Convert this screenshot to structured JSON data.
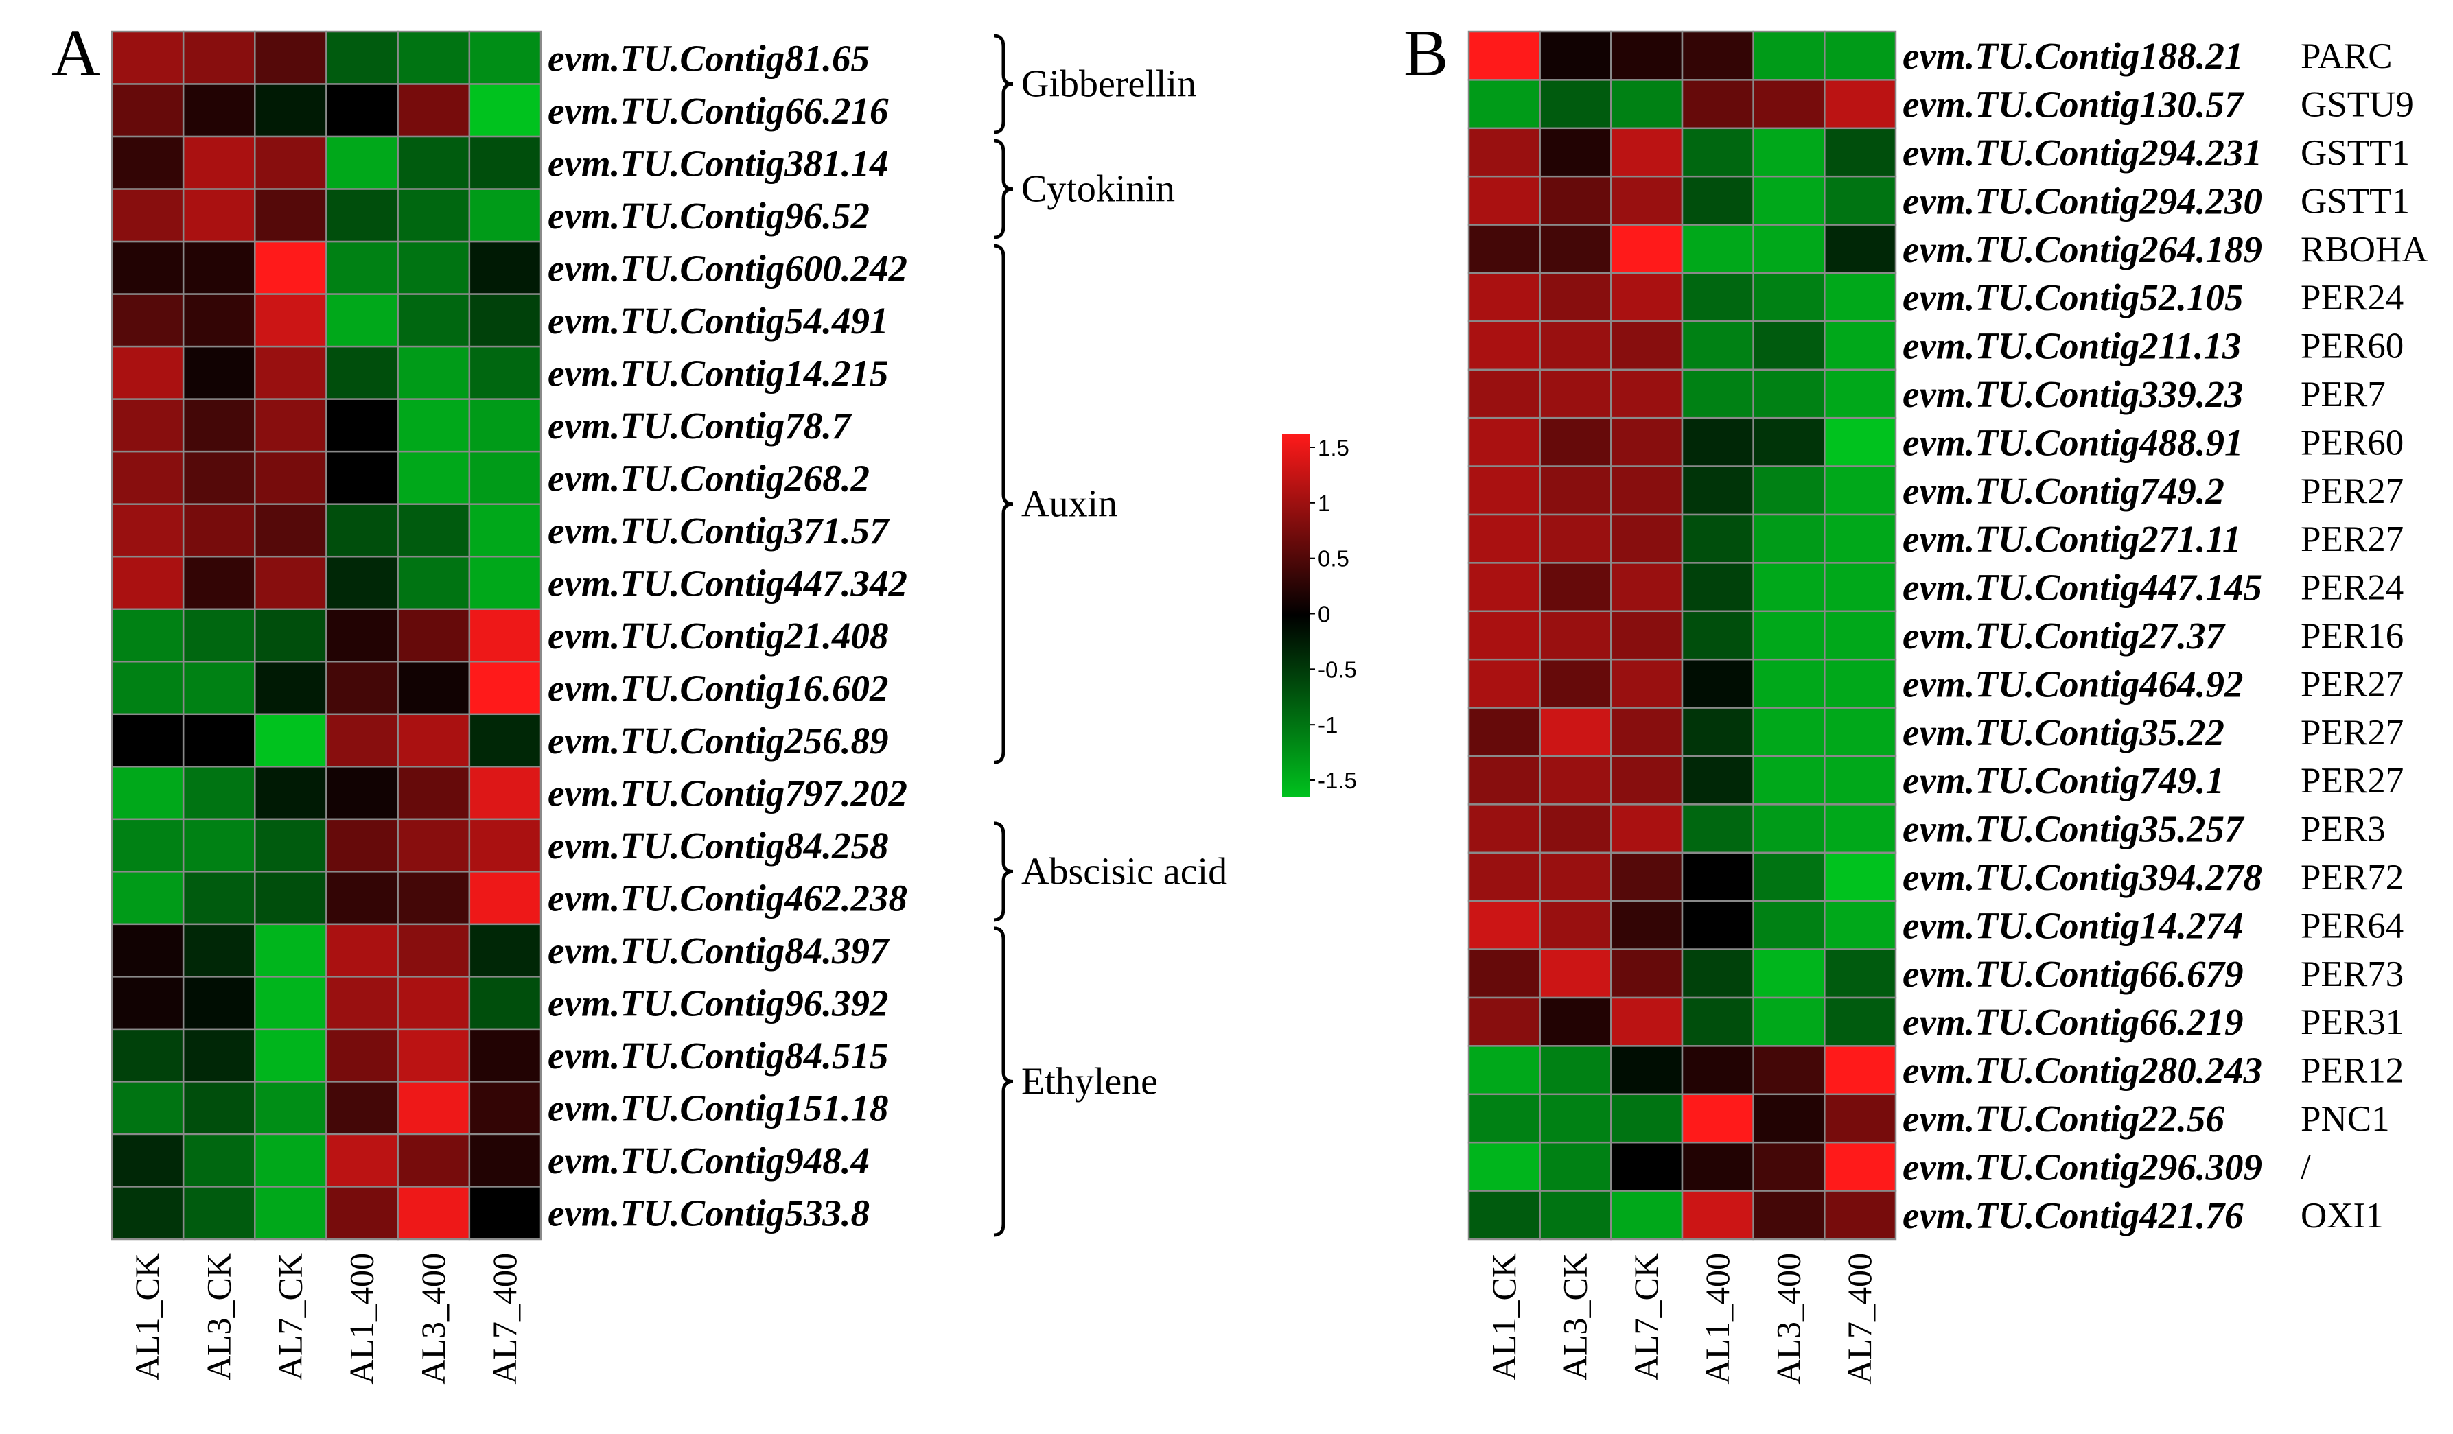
{
  "colors": {
    "low": "#00c21e",
    "mid": "#000000",
    "high": "#ff1a1a",
    "grid": "#8a8a8a"
  },
  "legend": {
    "range": [
      -1.5,
      1.5
    ],
    "ticks": [
      "1.5",
      "1",
      "0.5",
      "0",
      "-0.5",
      "-1",
      "-1.5"
    ]
  },
  "chart_data": [
    {
      "type": "heatmap",
      "panel": "A",
      "columns": [
        "AL1_CK",
        "AL3_CK",
        "AL7_CK",
        "AL1_400",
        "AL3_400",
        "AL7_400"
      ],
      "rows": [
        {
          "gene": "evm.TU.Contig81.65",
          "values": [
            0.9,
            0.8,
            0.5,
            -0.7,
            -0.9,
            -1.1
          ]
        },
        {
          "gene": "evm.TU.Contig66.216",
          "values": [
            0.6,
            0.2,
            -0.2,
            0.0,
            0.7,
            -1.5
          ]
        },
        {
          "gene": "evm.TU.Contig381.14",
          "values": [
            0.3,
            1.0,
            0.8,
            -1.3,
            -0.7,
            -0.6
          ]
        },
        {
          "gene": "evm.TU.Contig96.52",
          "values": [
            0.8,
            1.0,
            0.5,
            -0.6,
            -0.8,
            -1.2
          ]
        },
        {
          "gene": "evm.TU.Contig600.242",
          "values": [
            0.2,
            0.2,
            1.5,
            -1.0,
            -0.9,
            -0.2
          ]
        },
        {
          "gene": "evm.TU.Contig54.491",
          "values": [
            0.5,
            0.3,
            1.2,
            -1.3,
            -0.8,
            -0.5
          ]
        },
        {
          "gene": "evm.TU.Contig14.215",
          "values": [
            1.0,
            0.1,
            0.9,
            -0.6,
            -1.2,
            -0.8
          ]
        },
        {
          "gene": "evm.TU.Contig78.7",
          "values": [
            0.8,
            0.4,
            0.8,
            0.0,
            -1.3,
            -1.2
          ]
        },
        {
          "gene": "evm.TU.Contig268.2",
          "values": [
            0.8,
            0.5,
            0.7,
            0.0,
            -1.3,
            -1.2
          ]
        },
        {
          "gene": "evm.TU.Contig371.57",
          "values": [
            0.9,
            0.7,
            0.5,
            -0.6,
            -0.7,
            -1.3
          ]
        },
        {
          "gene": "evm.TU.Contig447.342",
          "values": [
            1.0,
            0.3,
            0.8,
            -0.3,
            -0.9,
            -1.3
          ]
        },
        {
          "gene": "evm.TU.Contig21.408",
          "values": [
            -1.0,
            -0.8,
            -0.6,
            0.2,
            0.6,
            1.4
          ]
        },
        {
          "gene": "evm.TU.Contig16.602",
          "values": [
            -1.0,
            -1.0,
            -0.2,
            0.4,
            0.1,
            1.5
          ]
        },
        {
          "gene": "evm.TU.Contig256.89",
          "values": [
            0.0,
            0.0,
            -1.5,
            0.8,
            1.0,
            -0.3
          ]
        },
        {
          "gene": "evm.TU.Contig797.202",
          "values": [
            -1.3,
            -0.9,
            -0.2,
            0.1,
            0.6,
            1.3
          ]
        },
        {
          "gene": "evm.TU.Contig84.258",
          "values": [
            -1.0,
            -1.0,
            -0.7,
            0.6,
            0.8,
            1.0
          ]
        },
        {
          "gene": "evm.TU.Contig462.238",
          "values": [
            -1.2,
            -0.7,
            -0.6,
            0.3,
            0.4,
            1.4
          ]
        },
        {
          "gene": "evm.TU.Contig84.397",
          "values": [
            0.1,
            -0.3,
            -1.4,
            1.0,
            0.8,
            -0.3
          ]
        },
        {
          "gene": "evm.TU.Contig96.392",
          "values": [
            0.1,
            -0.1,
            -1.4,
            0.9,
            1.0,
            -0.6
          ]
        },
        {
          "gene": "evm.TU.Contig84.515",
          "values": [
            -0.5,
            -0.3,
            -1.4,
            0.7,
            1.1,
            0.2
          ]
        },
        {
          "gene": "evm.TU.Contig151.18",
          "values": [
            -0.9,
            -0.6,
            -1.1,
            0.4,
            1.4,
            0.3
          ]
        },
        {
          "gene": "evm.TU.Contig948.4",
          "values": [
            -0.3,
            -0.8,
            -1.3,
            1.1,
            0.7,
            0.2
          ]
        },
        {
          "gene": "evm.TU.Contig533.8",
          "values": [
            -0.4,
            -0.7,
            -1.3,
            0.7,
            1.4,
            0.0
          ]
        }
      ],
      "groups": [
        {
          "label": "Gibberellin",
          "start": 0,
          "end": 1
        },
        {
          "label": "Cytokinin",
          "start": 2,
          "end": 3
        },
        {
          "label": "Auxin",
          "start": 4,
          "end": 13
        },
        {
          "label": "Abscisic acid",
          "start": 15,
          "end": 16
        },
        {
          "label": "Ethylene",
          "start": 17,
          "end": 22
        }
      ]
    },
    {
      "type": "heatmap",
      "panel": "B",
      "columns": [
        "AL1_CK",
        "AL3_CK",
        "AL7_CK",
        "AL1_400",
        "AL3_400",
        "AL7_400"
      ],
      "rows": [
        {
          "gene": "evm.TU.Contig188.21",
          "annotation": "PARC",
          "values": [
            1.5,
            0.1,
            0.2,
            0.3,
            -1.2,
            -1.2
          ]
        },
        {
          "gene": "evm.TU.Contig130.57",
          "annotation": "GSTU9",
          "values": [
            -1.2,
            -0.7,
            -1.0,
            0.6,
            0.7,
            1.1
          ]
        },
        {
          "gene": "evm.TU.Contig294.231",
          "annotation": "GSTT1",
          "values": [
            0.9,
            0.2,
            1.1,
            -0.8,
            -1.3,
            -0.6
          ]
        },
        {
          "gene": "evm.TU.Contig294.230",
          "annotation": "GSTT1",
          "values": [
            1.0,
            0.6,
            0.9,
            -0.6,
            -1.3,
            -0.9
          ]
        },
        {
          "gene": "evm.TU.Contig264.189",
          "annotation": "RBOHA",
          "values": [
            0.4,
            0.4,
            1.5,
            -1.3,
            -1.3,
            -0.3
          ]
        },
        {
          "gene": "evm.TU.Contig52.105",
          "annotation": "PER24",
          "values": [
            1.0,
            0.8,
            1.0,
            -0.8,
            -1.0,
            -1.3
          ]
        },
        {
          "gene": "evm.TU.Contig211.13",
          "annotation": "PER60",
          "values": [
            1.0,
            0.9,
            0.8,
            -1.0,
            -0.7,
            -1.3
          ]
        },
        {
          "gene": "evm.TU.Contig339.23",
          "annotation": "PER7",
          "values": [
            0.9,
            0.9,
            0.9,
            -1.0,
            -1.0,
            -1.3
          ]
        },
        {
          "gene": "evm.TU.Contig488.91",
          "annotation": "PER60",
          "values": [
            1.0,
            0.6,
            0.8,
            -0.3,
            -0.4,
            -1.5
          ]
        },
        {
          "gene": "evm.TU.Contig749.2",
          "annotation": "PER27",
          "values": [
            1.0,
            0.8,
            0.8,
            -0.4,
            -1.0,
            -1.3
          ]
        },
        {
          "gene": "evm.TU.Contig271.11",
          "annotation": "PER27",
          "values": [
            1.0,
            0.9,
            0.8,
            -0.6,
            -1.2,
            -1.3
          ]
        },
        {
          "gene": "evm.TU.Contig447.145",
          "annotation": "PER24",
          "values": [
            1.0,
            0.6,
            0.9,
            -0.5,
            -1.3,
            -1.3
          ]
        },
        {
          "gene": "evm.TU.Contig27.37",
          "annotation": "PER16",
          "values": [
            1.0,
            0.9,
            0.8,
            -0.6,
            -1.3,
            -1.3
          ]
        },
        {
          "gene": "evm.TU.Contig464.92",
          "annotation": "PER27",
          "values": [
            1.0,
            0.6,
            0.9,
            -0.1,
            -1.3,
            -1.3
          ]
        },
        {
          "gene": "evm.TU.Contig35.22",
          "annotation": "PER27",
          "values": [
            0.6,
            1.2,
            0.8,
            -0.4,
            -1.3,
            -1.3
          ]
        },
        {
          "gene": "evm.TU.Contig749.1",
          "annotation": "PER27",
          "values": [
            0.8,
            0.9,
            0.8,
            -0.3,
            -1.3,
            -1.3
          ]
        },
        {
          "gene": "evm.TU.Contig35.257",
          "annotation": "PER3",
          "values": [
            0.9,
            0.8,
            1.0,
            -0.8,
            -1.2,
            -1.3
          ]
        },
        {
          "gene": "evm.TU.Contig394.278",
          "annotation": "PER72",
          "values": [
            0.9,
            0.9,
            0.5,
            0.0,
            -0.9,
            -1.5
          ]
        },
        {
          "gene": "evm.TU.Contig14.274",
          "annotation": "PER64",
          "values": [
            1.2,
            0.9,
            0.3,
            0.0,
            -1.0,
            -1.3
          ]
        },
        {
          "gene": "evm.TU.Contig66.679",
          "annotation": "PER73",
          "values": [
            0.6,
            1.2,
            0.6,
            -0.5,
            -1.4,
            -0.7
          ]
        },
        {
          "gene": "evm.TU.Contig66.219",
          "annotation": "PER31",
          "values": [
            0.8,
            0.2,
            1.1,
            -0.6,
            -1.3,
            -0.7
          ]
        },
        {
          "gene": "evm.TU.Contig280.243",
          "annotation": "PER12",
          "values": [
            -1.3,
            -1.0,
            -0.1,
            0.2,
            0.4,
            1.5
          ]
        },
        {
          "gene": "evm.TU.Contig22.56",
          "annotation": "PNC1",
          "values": [
            -1.0,
            -1.0,
            -0.9,
            1.5,
            0.2,
            0.7
          ]
        },
        {
          "gene": "evm.TU.Contig296.309",
          "annotation": "/",
          "values": [
            -1.4,
            -1.0,
            0.0,
            0.2,
            0.4,
            1.5
          ]
        },
        {
          "gene": "evm.TU.Contig421.76",
          "annotation": "OXI1",
          "values": [
            -0.7,
            -0.9,
            -1.3,
            1.2,
            0.4,
            0.7
          ]
        }
      ]
    }
  ]
}
